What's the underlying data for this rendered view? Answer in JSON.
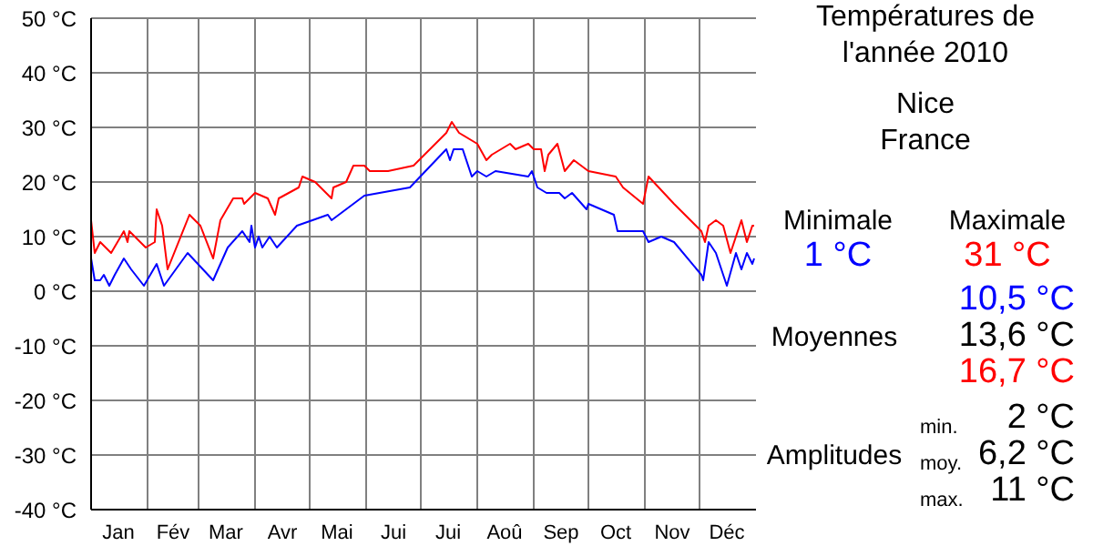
{
  "chart_data": {
    "type": "line",
    "title": "Températures de l'année 2010",
    "subtitle": "Nice France",
    "annotations": [
      "Minimale",
      "1 °C",
      "Maximale",
      "31 °C",
      "Moyennes",
      "10,5 °C",
      "13,6 °C",
      "16,7 °C",
      "Amplitudes",
      "min.",
      "2 °C",
      "moy.",
      "6,2 °C",
      "max.",
      "11 °C"
    ],
    "xlim": [
      "2010-01-01",
      "2011-01-01"
    ],
    "xticks": [
      {
        "value": "2010-01-16",
        "label": "Jan"
      },
      {
        "value": "2010-02-01",
        "label": null
      },
      {
        "value": "2010-02-15",
        "label": "Fév"
      },
      {
        "value": "2010-03-01",
        "label": null
      },
      {
        "value": "2010-03-16",
        "label": "Mar"
      },
      {
        "value": "2010-04-01",
        "label": null
      },
      {
        "value": "2010-04-16",
        "label": "Avr"
      },
      {
        "value": "2010-05-01",
        "label": null
      },
      {
        "value": "2010-05-16",
        "label": "Mai"
      },
      {
        "value": "2010-06-01",
        "label": null
      },
      {
        "value": "2010-06-16",
        "label": "Jui"
      },
      {
        "value": "2010-07-01",
        "label": null
      },
      {
        "value": "2010-07-16",
        "label": "Jui"
      },
      {
        "value": "2010-08-01",
        "label": null
      },
      {
        "value": "2010-08-16",
        "label": "Aoû"
      },
      {
        "value": "2010-09-01",
        "label": null
      },
      {
        "value": "2010-09-16",
        "label": "Sep"
      },
      {
        "value": "2010-10-01",
        "label": null
      },
      {
        "value": "2010-10-16",
        "label": "Oct"
      },
      {
        "value": "2010-11-01",
        "label": null
      },
      {
        "value": "2010-11-16",
        "label": "Nov"
      },
      {
        "value": "2010-12-01",
        "label": null
      },
      {
        "value": "2010-12-16",
        "label": "Déc"
      }
    ],
    "ylim": [
      -40,
      50
    ],
    "yticks": [
      {
        "value": -40,
        "label": "-40 °C"
      },
      {
        "value": -30,
        "label": "-30 °C"
      },
      {
        "value": -20,
        "label": "-20 °C"
      },
      {
        "value": -10,
        "label": "-10 °C"
      },
      {
        "value": 0,
        "label": "0 °C"
      },
      {
        "value": 10,
        "label": "10 °C"
      },
      {
        "value": 20,
        "label": "20 °C"
      },
      {
        "value": 30,
        "label": "30 °C"
      },
      {
        "value": 40,
        "label": "40 °C"
      },
      {
        "value": 50,
        "label": "50 °C"
      }
    ],
    "grid": true,
    "marker": "none",
    "line_style": "solid",
    "series": [
      {
        "color": "#0000ff",
        "x": [
          "2010-01-01",
          "2010-01-03",
          "2010-01-06",
          "2010-01-08",
          "2010-01-11",
          "2010-01-14",
          "2010-01-19",
          "2010-01-23",
          "2010-01-30",
          "2010-02-06",
          "2010-02-10",
          "2010-02-23",
          "2010-03-09",
          "2010-03-17",
          "2010-03-25",
          "2010-03-29",
          "2010-03-30",
          "2010-04-01",
          "2010-04-03",
          "2010-04-05",
          "2010-04-09",
          "2010-04-13",
          "2010-04-24",
          "2010-05-11",
          "2010-05-13",
          "2010-05-31",
          "2010-06-25",
          "2010-07-15",
          "2010-07-17",
          "2010-07-19",
          "2010-07-24",
          "2010-07-29",
          "2010-08-01",
          "2010-08-06",
          "2010-08-11",
          "2010-08-29",
          "2010-08-31",
          "2010-09-03",
          "2010-09-08",
          "2010-09-15",
          "2010-09-18",
          "2010-09-22",
          "2010-09-30",
          "2010-10-01",
          "2010-10-15",
          "2010-10-17",
          "2010-10-31",
          "2010-11-03",
          "2010-11-10",
          "2010-11-17",
          "2010-12-02",
          "2010-12-03",
          "2010-12-06",
          "2010-12-10",
          "2010-12-16",
          "2010-12-21",
          "2010-12-24",
          "2010-12-27",
          "2010-12-30",
          "2010-12-31"
        ],
        "values": [
          6,
          2,
          2,
          3,
          1,
          3,
          6,
          4,
          1,
          5,
          1,
          7,
          2,
          8,
          11,
          9,
          12,
          8,
          10,
          8,
          10,
          8,
          12,
          14,
          13,
          17.5,
          19,
          26,
          24,
          26,
          26,
          21,
          22,
          21,
          22,
          21,
          22,
          19,
          18,
          18,
          17,
          18,
          15,
          16,
          14,
          11,
          11,
          9,
          10,
          9,
          3,
          2,
          9,
          7,
          1,
          7,
          4,
          7,
          5,
          6
        ]
      },
      {
        "color": "#ff0000",
        "x": [
          "2010-01-01",
          "2010-01-03",
          "2010-01-06",
          "2010-01-12",
          "2010-01-19",
          "2010-01-21",
          "2010-01-22",
          "2010-01-31",
          "2010-02-05",
          "2010-02-06",
          "2010-02-09",
          "2010-02-12",
          "2010-02-24",
          "2010-03-02",
          "2010-03-09",
          "2010-03-13",
          "2010-03-20",
          "2010-03-25",
          "2010-03-26",
          "2010-04-01",
          "2010-04-08",
          "2010-04-12",
          "2010-04-14",
          "2010-04-25",
          "2010-04-27",
          "2010-05-04",
          "2010-05-13",
          "2010-05-14",
          "2010-05-21",
          "2010-05-25",
          "2010-05-31",
          "2010-06-03",
          "2010-06-13",
          "2010-06-27",
          "2010-07-15",
          "2010-07-18",
          "2010-07-22",
          "2010-08-01",
          "2010-08-06",
          "2010-08-09",
          "2010-08-19",
          "2010-08-22",
          "2010-08-29",
          "2010-09-01",
          "2010-09-05",
          "2010-09-07",
          "2010-09-09",
          "2010-09-14",
          "2010-09-18",
          "2010-09-23",
          "2010-10-01",
          "2010-10-16",
          "2010-10-20",
          "2010-10-31",
          "2010-11-03",
          "2010-11-17",
          "2010-12-02",
          "2010-12-04",
          "2010-12-06",
          "2010-12-10",
          "2010-12-14",
          "2010-12-18",
          "2010-12-24",
          "2010-12-27",
          "2010-12-30",
          "2010-12-31"
        ],
        "values": [
          13,
          7,
          9,
          7,
          11,
          9,
          11,
          8,
          9,
          15,
          12,
          4,
          14,
          12,
          6,
          13,
          17,
          17,
          16,
          18,
          17,
          14,
          17,
          19,
          21,
          20,
          17,
          19,
          20,
          23,
          23,
          22,
          22,
          23,
          29,
          31,
          29,
          27,
          24,
          25,
          27,
          26,
          27,
          26,
          26,
          22,
          25,
          27,
          22,
          24,
          22,
          21,
          19,
          16,
          21,
          16,
          11,
          9,
          12,
          13,
          12,
          7,
          13,
          9,
          12,
          12
        ]
      }
    ]
  }
}
